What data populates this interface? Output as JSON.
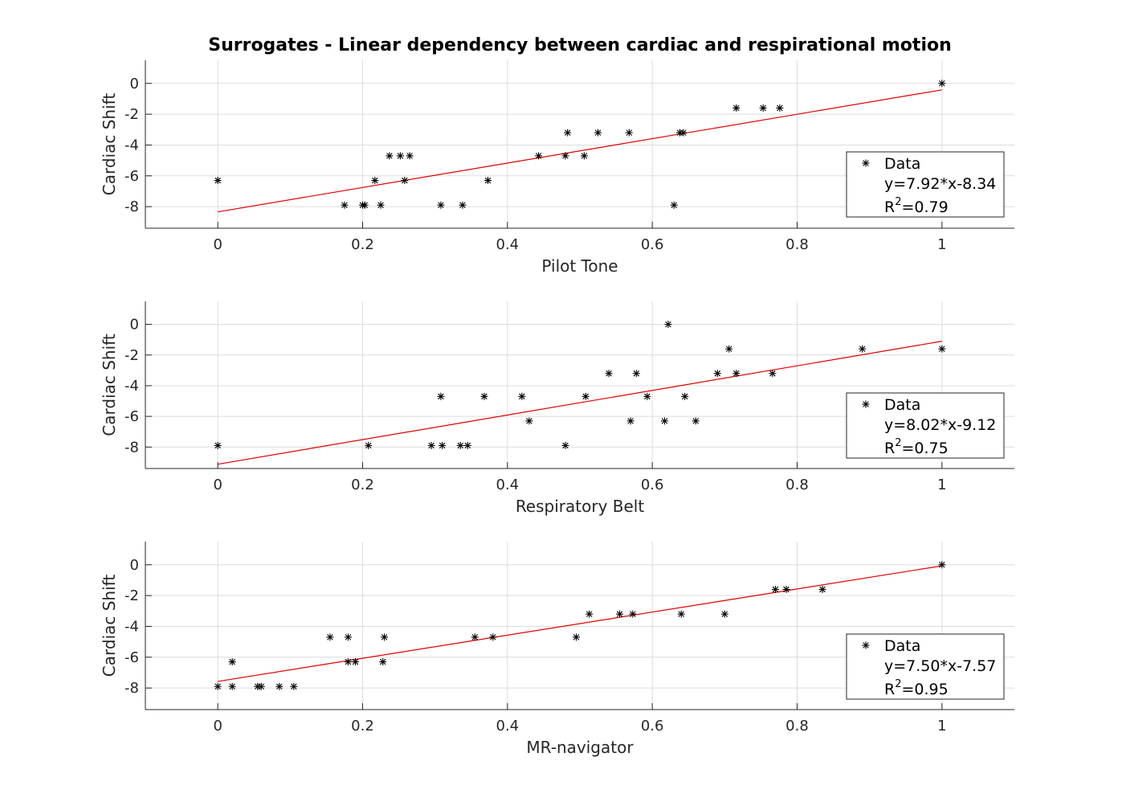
{
  "chart_data": [
    {
      "type": "scatter",
      "title": "Surrogates - Linear dependency between cardiac and respirational motion",
      "xlabel": "Pilot Tone",
      "ylabel": "Cardiac Shift",
      "xlim": [
        -0.1,
        1.1
      ],
      "ylim": [
        -9.4,
        1.5
      ],
      "xticks": [
        "0",
        "0.2",
        "0.4",
        "0.6",
        "0.8",
        "1"
      ],
      "yticks": [
        "0",
        "-2",
        "-4",
        "-6",
        "-8"
      ],
      "grid": true,
      "legend_position": "right",
      "legend": {
        "data_label": "Data",
        "fit_label": "y=7.92*x-8.34",
        "r2_prefix": "R",
        "r2_sup": "2",
        "r2_value": "=0.79"
      },
      "fit": {
        "slope": 7.92,
        "intercept": -8.34,
        "r2": 0.79
      },
      "x": [
        0.0,
        0.175,
        0.2,
        0.203,
        0.217,
        0.225,
        0.237,
        0.252,
        0.258,
        0.265,
        0.308,
        0.338,
        0.373,
        0.443,
        0.48,
        0.483,
        0.506,
        0.525,
        0.568,
        0.63,
        0.638,
        0.643,
        0.716,
        0.753,
        0.776,
        1.0
      ],
      "y": [
        -6.3,
        -7.9,
        -7.9,
        -7.9,
        -6.3,
        -7.9,
        -4.7,
        -4.7,
        -6.3,
        -4.7,
        -7.9,
        -7.9,
        -6.3,
        -4.7,
        -4.7,
        -3.2,
        -4.7,
        -3.2,
        -3.2,
        -7.9,
        -3.2,
        -3.2,
        -1.6,
        -1.6,
        -1.6,
        0.0
      ]
    },
    {
      "type": "scatter",
      "xlabel": "Respiratory Belt",
      "ylabel": "Cardiac Shift",
      "xlim": [
        -0.1,
        1.1
      ],
      "ylim": [
        -9.4,
        1.5
      ],
      "xticks": [
        "0",
        "0.2",
        "0.4",
        "0.6",
        "0.8",
        "1"
      ],
      "yticks": [
        "0",
        "-2",
        "-4",
        "-6",
        "-8"
      ],
      "grid": true,
      "legend_position": "right",
      "legend": {
        "data_label": "Data",
        "fit_label": "y=8.02*x-9.12",
        "r2_prefix": "R",
        "r2_sup": "2",
        "r2_value": "=0.75"
      },
      "fit": {
        "slope": 8.02,
        "intercept": -9.12,
        "r2": 0.75
      },
      "x": [
        0.0,
        0.208,
        0.295,
        0.308,
        0.31,
        0.335,
        0.345,
        0.368,
        0.42,
        0.43,
        0.48,
        0.508,
        0.54,
        0.57,
        0.578,
        0.593,
        0.617,
        0.622,
        0.645,
        0.66,
        0.69,
        0.706,
        0.716,
        0.766,
        0.89,
        1.0
      ],
      "y": [
        -7.9,
        -7.9,
        -7.9,
        -4.7,
        -7.9,
        -7.9,
        -7.9,
        -4.7,
        -4.7,
        -6.3,
        -7.9,
        -4.7,
        -3.2,
        -6.3,
        -3.2,
        -4.7,
        -6.3,
        0.0,
        -4.7,
        -6.3,
        -3.2,
        -1.6,
        -3.2,
        -3.2,
        -1.6,
        -1.6
      ]
    },
    {
      "type": "scatter",
      "xlabel": "MR-navigator",
      "ylabel": "Cardiac Shift",
      "xlim": [
        -0.1,
        1.1
      ],
      "ylim": [
        -9.4,
        1.5
      ],
      "xticks": [
        "0",
        "0.2",
        "0.4",
        "0.6",
        "0.8",
        "1"
      ],
      "yticks": [
        "0",
        "-2",
        "-4",
        "-6",
        "-8"
      ],
      "grid": true,
      "legend_position": "right",
      "legend": {
        "data_label": "Data",
        "fit_label": "y=7.50*x-7.57",
        "r2_prefix": "R",
        "r2_sup": "2",
        "r2_value": "=0.95"
      },
      "fit": {
        "slope": 7.5,
        "intercept": -7.57,
        "r2": 0.95
      },
      "x": [
        0.0,
        0.02,
        0.02,
        0.055,
        0.06,
        0.085,
        0.105,
        0.155,
        0.18,
        0.18,
        0.19,
        0.228,
        0.23,
        0.355,
        0.38,
        0.495,
        0.513,
        0.555,
        0.573,
        0.64,
        0.7,
        0.77,
        0.785,
        0.835,
        1.0
      ],
      "y": [
        -7.9,
        -7.9,
        -6.3,
        -7.9,
        -7.9,
        -7.9,
        -7.9,
        -4.7,
        -4.7,
        -6.3,
        -6.3,
        -6.3,
        -4.7,
        -4.7,
        -4.7,
        -4.7,
        -3.2,
        -3.2,
        -3.2,
        -3.2,
        -3.2,
        -1.6,
        -1.6,
        -1.6,
        0.0
      ]
    }
  ]
}
